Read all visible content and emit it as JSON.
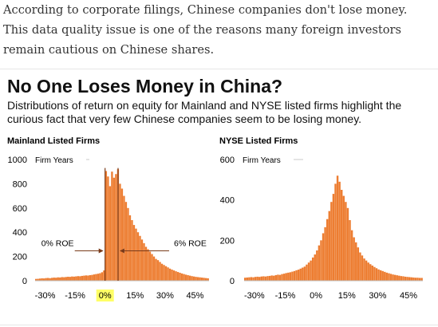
{
  "article": {
    "intro_text": "According to corporate filings, Chinese companies don't lose money. This data quality issue is one of the reasons many foreign investors remain cautious on Chinese shares."
  },
  "figure": {
    "title": "No One Loses Money in China?",
    "subtitle": "Distributions of return on equity for Mainland and NYSE listed firms highlight the curious fact that very few Chinese companies seem to be losing money."
  },
  "colors": {
    "bar": "#ED7D31",
    "highlight": "#FFFF66",
    "arrow": "#7a3b1a",
    "axis": "#bfbfbf"
  },
  "chart_data": [
    {
      "type": "bar",
      "title": "Mainland Listed Firms",
      "ylabel": "Firm Years",
      "ylim": [
        0,
        1000
      ],
      "yticks": [
        0,
        200,
        400,
        600,
        800,
        1000
      ],
      "xlim": [
        -35,
        52
      ],
      "xticks": [
        -30,
        -15,
        0,
        15,
        30,
        45
      ],
      "xtick_labels": [
        "-30%",
        "-15%",
        "0%",
        "15%",
        "30%",
        "45%"
      ],
      "highlighted_tick": "0%",
      "bin_width": 1,
      "x": [
        -35,
        -34,
        -33,
        -32,
        -31,
        -30,
        -29,
        -28,
        -27,
        -26,
        -25,
        -24,
        -23,
        -22,
        -21,
        -20,
        -19,
        -18,
        -17,
        -16,
        -15,
        -14,
        -13,
        -12,
        -11,
        -10,
        -9,
        -8,
        -7,
        -6,
        -5,
        -4,
        -3,
        -2,
        -1,
        0,
        1,
        2,
        3,
        4,
        5,
        6,
        7,
        8,
        9,
        10,
        11,
        12,
        13,
        14,
        15,
        16,
        17,
        18,
        19,
        20,
        21,
        22,
        23,
        24,
        25,
        26,
        27,
        28,
        29,
        30,
        31,
        32,
        33,
        34,
        35,
        36,
        37,
        38,
        39,
        40,
        41,
        42,
        43,
        44,
        45,
        46,
        47,
        48,
        49,
        50,
        51
      ],
      "values": [
        15,
        16,
        18,
        20,
        19,
        22,
        23,
        21,
        24,
        26,
        25,
        28,
        27,
        30,
        29,
        31,
        33,
        32,
        35,
        34,
        36,
        38,
        37,
        40,
        42,
        44,
        43,
        46,
        48,
        52,
        55,
        58,
        62,
        70,
        85,
        905,
        860,
        780,
        900,
        850,
        880,
        920,
        800,
        760,
        700,
        650,
        600,
        540,
        500,
        460,
        430,
        400,
        370,
        340,
        310,
        280,
        260,
        240,
        220,
        200,
        180,
        170,
        155,
        140,
        130,
        120,
        110,
        100,
        92,
        85,
        78,
        72,
        66,
        60,
        55,
        50,
        46,
        42,
        38,
        35,
        32,
        30,
        28,
        26,
        24,
        22,
        20
      ],
      "annotations": [
        {
          "text": "0% ROE",
          "x": 0
        },
        {
          "text": "6% ROE",
          "x": 6
        }
      ]
    },
    {
      "type": "bar",
      "title": "NYSE Listed Firms",
      "ylabel": "Firm Years",
      "ylim": [
        0,
        600
      ],
      "yticks": [
        0,
        200,
        400,
        600
      ],
      "xlim": [
        -35,
        52
      ],
      "xticks": [
        -30,
        -15,
        0,
        15,
        30,
        45
      ],
      "xtick_labels": [
        "-30%",
        "-15%",
        "0%",
        "15%",
        "30%",
        "45%"
      ],
      "bin_width": 1,
      "x": [
        -35,
        -34,
        -33,
        -32,
        -31,
        -30,
        -29,
        -28,
        -27,
        -26,
        -25,
        -24,
        -23,
        -22,
        -21,
        -20,
        -19,
        -18,
        -17,
        -16,
        -15,
        -14,
        -13,
        -12,
        -11,
        -10,
        -9,
        -8,
        -7,
        -6,
        -5,
        -4,
        -3,
        -2,
        -1,
        0,
        1,
        2,
        3,
        4,
        5,
        6,
        7,
        8,
        9,
        10,
        11,
        12,
        13,
        14,
        15,
        16,
        17,
        18,
        19,
        20,
        21,
        22,
        23,
        24,
        25,
        26,
        27,
        28,
        29,
        30,
        31,
        32,
        33,
        34,
        35,
        36,
        37,
        38,
        39,
        40,
        41,
        42,
        43,
        44,
        45,
        46,
        47,
        48,
        49,
        50,
        51
      ],
      "values": [
        15,
        16,
        17,
        18,
        17,
        19,
        20,
        19,
        21,
        22,
        21,
        23,
        24,
        26,
        25,
        28,
        30,
        29,
        33,
        35,
        38,
        40,
        42,
        45,
        48,
        52,
        55,
        60,
        65,
        70,
        80,
        90,
        100,
        115,
        130,
        150,
        175,
        200,
        235,
        265,
        305,
        345,
        390,
        430,
        480,
        520,
        490,
        450,
        420,
        390,
        360,
        300,
        250,
        215,
        190,
        165,
        140,
        125,
        110,
        100,
        90,
        82,
        75,
        68,
        62,
        56,
        52,
        48,
        44,
        40,
        37,
        34,
        31,
        29,
        27,
        25,
        23,
        22,
        20,
        19,
        18,
        17,
        16,
        15,
        15,
        14,
        14
      ]
    }
  ]
}
